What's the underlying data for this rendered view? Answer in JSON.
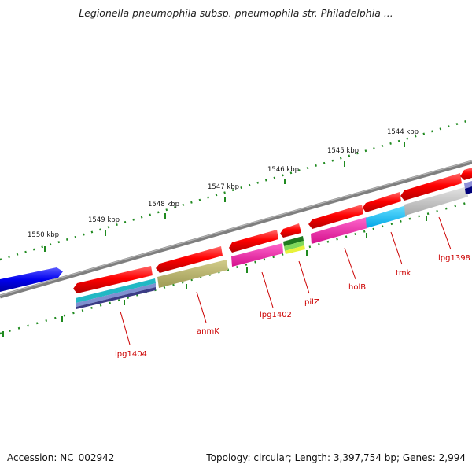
{
  "title": "Legionella pneumophila subsp. pneumophila str. Philadelphia ...",
  "footer": {
    "accession": "Accession: NC_002942",
    "summary": "Topology: circular; Length: 3,397,754 bp; Genes: 2,994"
  },
  "scale_labels": [
    "1550 kbp",
    "1549 kbp",
    "1548 kbp",
    "1547 kbp",
    "1546 kbp",
    "1545 kbp",
    "1544 kbp"
  ],
  "gene_labels": [
    "lpg1404",
    "anmK",
    "lpg1402",
    "pilZ",
    "holB",
    "tmk",
    "lpg1398"
  ],
  "colors": {
    "backbone": "#808080",
    "scale_ticks": "#1f8a1f",
    "forward_genes": "#ee0000",
    "reverse_gene": "#0000ee",
    "label": "#cc0000"
  }
}
